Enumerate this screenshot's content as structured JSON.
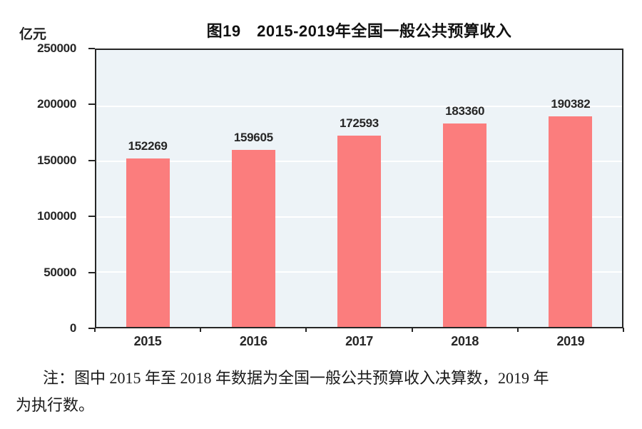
{
  "chart": {
    "title": "图19　2015-2019年全国一般公共预算收入",
    "unit_label": "亿元"
  },
  "chart_data": {
    "type": "bar",
    "title": "图19　2015-2019年全国一般公共预算收入",
    "categories": [
      "2015",
      "2016",
      "2017",
      "2018",
      "2019"
    ],
    "values": [
      152269,
      159605,
      172593,
      183360,
      190382
    ],
    "xlabel": "",
    "ylabel": "亿元",
    "ylim": [
      0,
      250000
    ],
    "yticks": [
      0,
      50000,
      100000,
      150000,
      200000,
      250000
    ],
    "grid": "horizontal-white",
    "legend_position": "none",
    "data_labels": true,
    "bar_color": "#FB7D7D",
    "plot_background": "#EDF3F7",
    "border_color": "#262626"
  },
  "note": {
    "lines": [
      "注：图中 2015 年至 2018 年数据为全国一般公共预算收入决算数，2019 年",
      "为执行数。"
    ]
  }
}
